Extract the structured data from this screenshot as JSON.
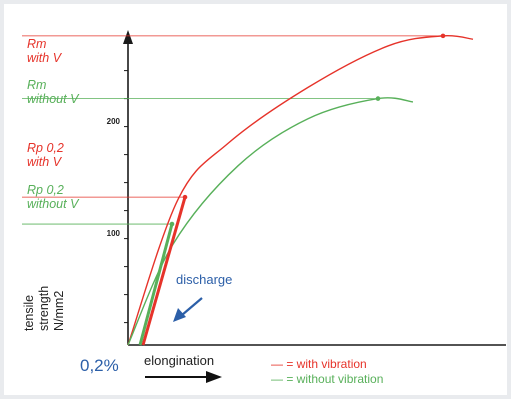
{
  "chart_data": {
    "type": "line",
    "title": "",
    "xlabel": "elongination",
    "ylabel": "tensile strength N/mm2",
    "x_origin_label": "0,2%",
    "yticks": [
      "100",
      "200"
    ],
    "series": [
      {
        "name": "with vibration",
        "color": "#e6332a",
        "points": [
          [
            0,
            0
          ],
          [
            50,
            130
          ],
          [
            100,
            180
          ],
          [
            180,
            230
          ],
          [
            260,
            267
          ],
          [
            315,
            276
          ],
          [
            345,
            273
          ]
        ],
        "marker": [
          315,
          276
        ]
      },
      {
        "name": "without vibration",
        "color": "#58b05a",
        "points": [
          [
            0,
            0
          ],
          [
            45,
            90
          ],
          [
            110,
            160
          ],
          [
            180,
            202
          ],
          [
            250,
            220
          ],
          [
            285,
            217
          ]
        ],
        "marker": [
          250,
          220
        ]
      }
    ],
    "discharge_lines": [
      {
        "series": "with vibration",
        "from": [
          15,
          0
        ],
        "to": [
          57,
          132
        ],
        "color": "#e6332a"
      },
      {
        "series": "without vibration",
        "from": [
          12,
          0
        ],
        "to": [
          44,
          108
        ],
        "color": "#58b05a"
      }
    ],
    "annotations": [
      {
        "text": "Rm with V",
        "lines": [
          "Rm",
          "with V"
        ],
        "color": "#e6332a"
      },
      {
        "text": "Rm without V",
        "lines": [
          "Rm",
          "without V"
        ],
        "color": "#58b05a"
      },
      {
        "text": "Rp 0,2 with V",
        "lines": [
          "Rp 0,2",
          "with V"
        ],
        "color": "#e6332a"
      },
      {
        "text": "Rp 0,2 without V",
        "lines": [
          "Rp 0,2",
          "without V"
        ],
        "color": "#58b05a"
      },
      {
        "text": "discharge",
        "color": "#2c5fa8"
      }
    ],
    "legend": [
      {
        "text": "— = with vibration",
        "color": "#e6332a"
      },
      {
        "text": "— = without vibration",
        "color": "#58b05a"
      }
    ],
    "legend_placement": "bottom"
  }
}
